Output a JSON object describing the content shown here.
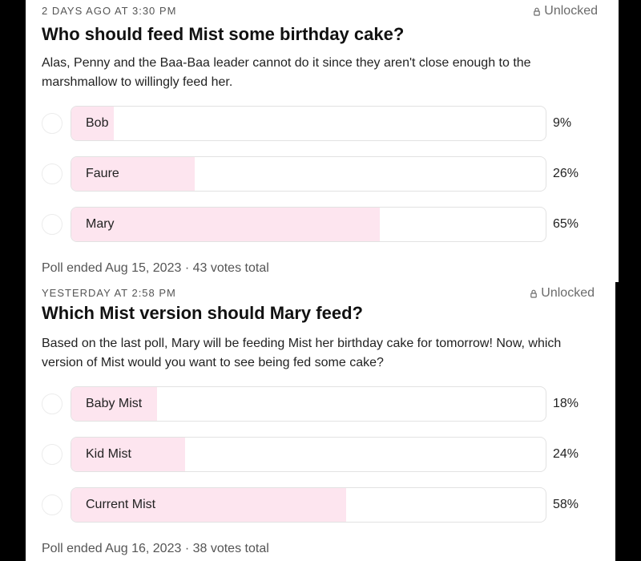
{
  "colors": {
    "fill": "#fde5ef",
    "border": "#e2e2e2",
    "text": "#222222",
    "muted": "#555555"
  },
  "posts": [
    {
      "timestamp": "2 DAYS AGO AT 3:30 PM",
      "status": "Unlocked",
      "status_icon": "lock-icon",
      "title": "Who should feed Mist some birthday cake?",
      "description": "Alas, Penny and the Baa-Baa leader cannot do it since they aren't close enough to the marshmallow to willingly feed her.",
      "options": [
        {
          "label": "Bob",
          "percent_text": "9%",
          "percent": 9
        },
        {
          "label": "Faure",
          "percent_text": "26%",
          "percent": 26
        },
        {
          "label": "Mary",
          "percent_text": "65%",
          "percent": 65
        }
      ],
      "footer": "Poll ended Aug 15, 2023 · 43 votes total"
    },
    {
      "timestamp": "YESTERDAY AT 2:58 PM",
      "status": "Unlocked",
      "status_icon": "lock-icon",
      "title": "Which Mist version should Mary feed?",
      "description": "Based on the last poll, Mary will be feeding Mist her birthday cake for tomorrow! Now, which version of Mist would you want to see being fed some cake?",
      "options": [
        {
          "label": "Baby Mist",
          "percent_text": "18%",
          "percent": 18
        },
        {
          "label": "Kid Mist",
          "percent_text": "24%",
          "percent": 24
        },
        {
          "label": "Current Mist",
          "percent_text": "58%",
          "percent": 58
        }
      ],
      "footer": "Poll ended Aug 16, 2023 · 38 votes total"
    }
  ]
}
